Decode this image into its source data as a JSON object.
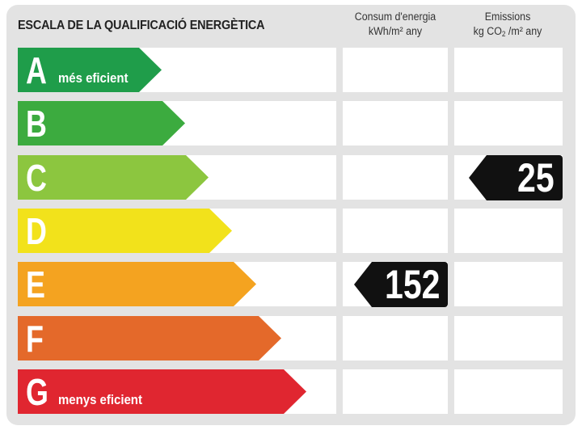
{
  "header": {
    "title": "ESCALA DE LA QUALIFICACIÓ ENERGÈTICA",
    "consumption_line1": "Consum d'energia",
    "consumption_line2": "kWh/m² any",
    "emissions_line1": "Emissions",
    "emissions_unit_prefix": "kg CO",
    "emissions_unit_sub": "2",
    "emissions_unit_suffix": " /m² any"
  },
  "classes": [
    {
      "letter": "A",
      "label": "més eficient",
      "color": "#1f9d4a"
    },
    {
      "letter": "B",
      "label": "",
      "color": "#3cab3f"
    },
    {
      "letter": "C",
      "label": "",
      "color": "#8cc63f"
    },
    {
      "letter": "D",
      "label": "",
      "color": "#f2e21b"
    },
    {
      "letter": "E",
      "label": "",
      "color": "#f4a320"
    },
    {
      "letter": "F",
      "label": "",
      "color": "#e4692a"
    },
    {
      "letter": "G",
      "label": "menys eficient",
      "color": "#e02630"
    }
  ],
  "rating": {
    "consumption": {
      "value": "152",
      "class": "E"
    },
    "emissions": {
      "value": "25",
      "class": "C"
    }
  }
}
